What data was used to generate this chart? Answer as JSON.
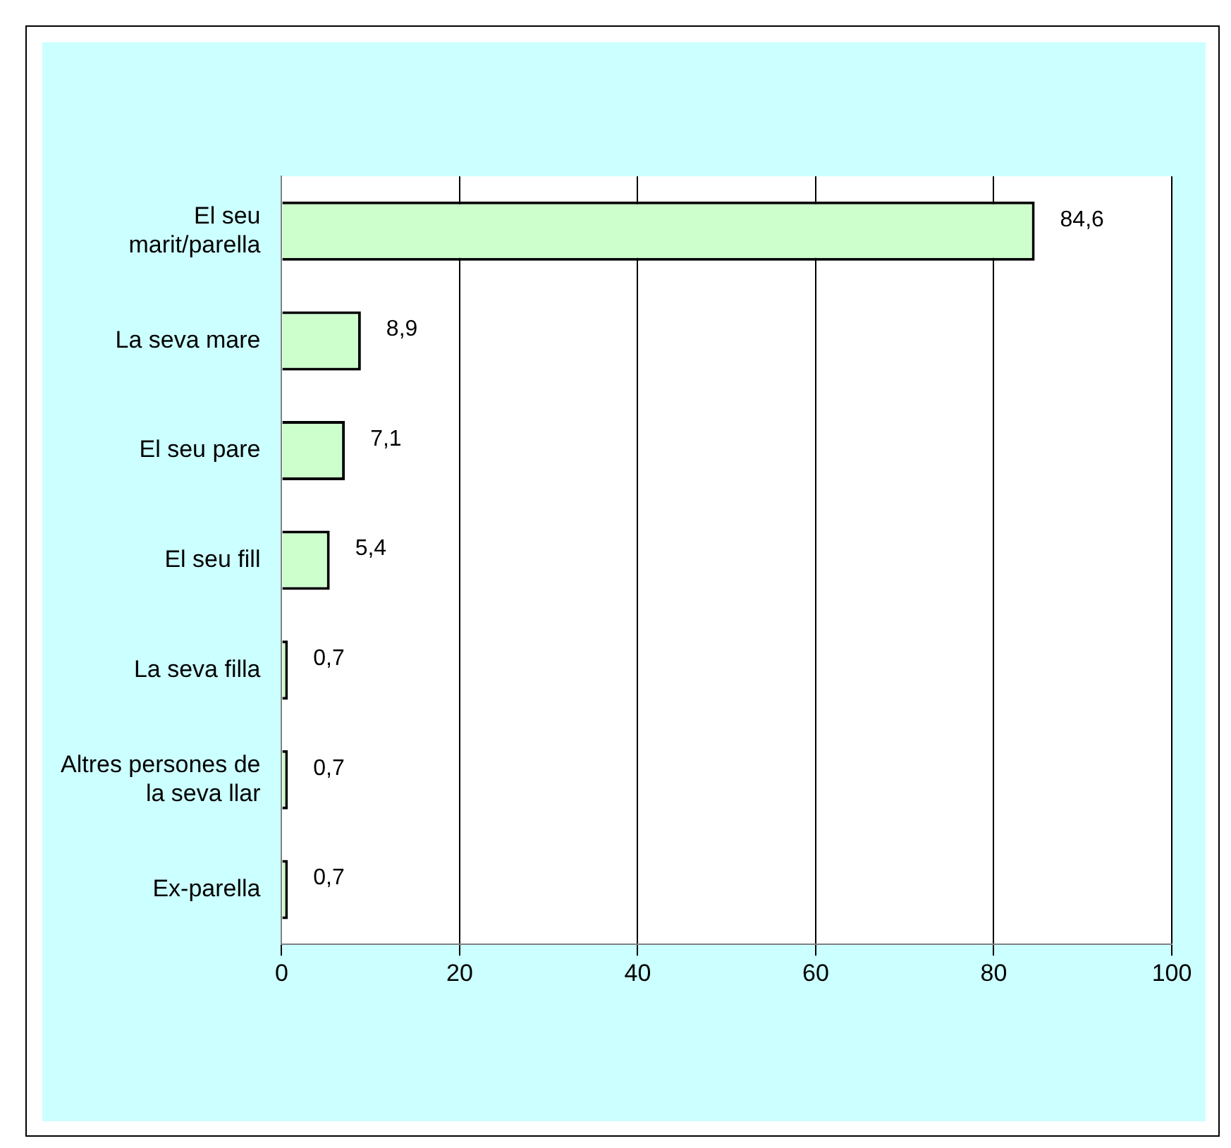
{
  "chart_data": {
    "type": "bar",
    "orientation": "horizontal",
    "categories": [
      "El seu marit/parella",
      "La seva mare",
      "El seu pare",
      "El seu fill",
      "La seva filla",
      "Altres persones de la seva llar",
      "Ex-parella"
    ],
    "values": [
      84.6,
      8.9,
      7.1,
      5.4,
      0.7,
      0.7,
      0.7
    ],
    "value_labels": [
      "84,6",
      "8,9",
      "7,1",
      "5,4",
      "0,7",
      "0,7",
      "0,7"
    ],
    "color": "#ccffcc",
    "xlim": [
      0,
      100
    ],
    "xticks": [
      0,
      20,
      40,
      60,
      80,
      100
    ],
    "grid": "x",
    "legend": false
  }
}
